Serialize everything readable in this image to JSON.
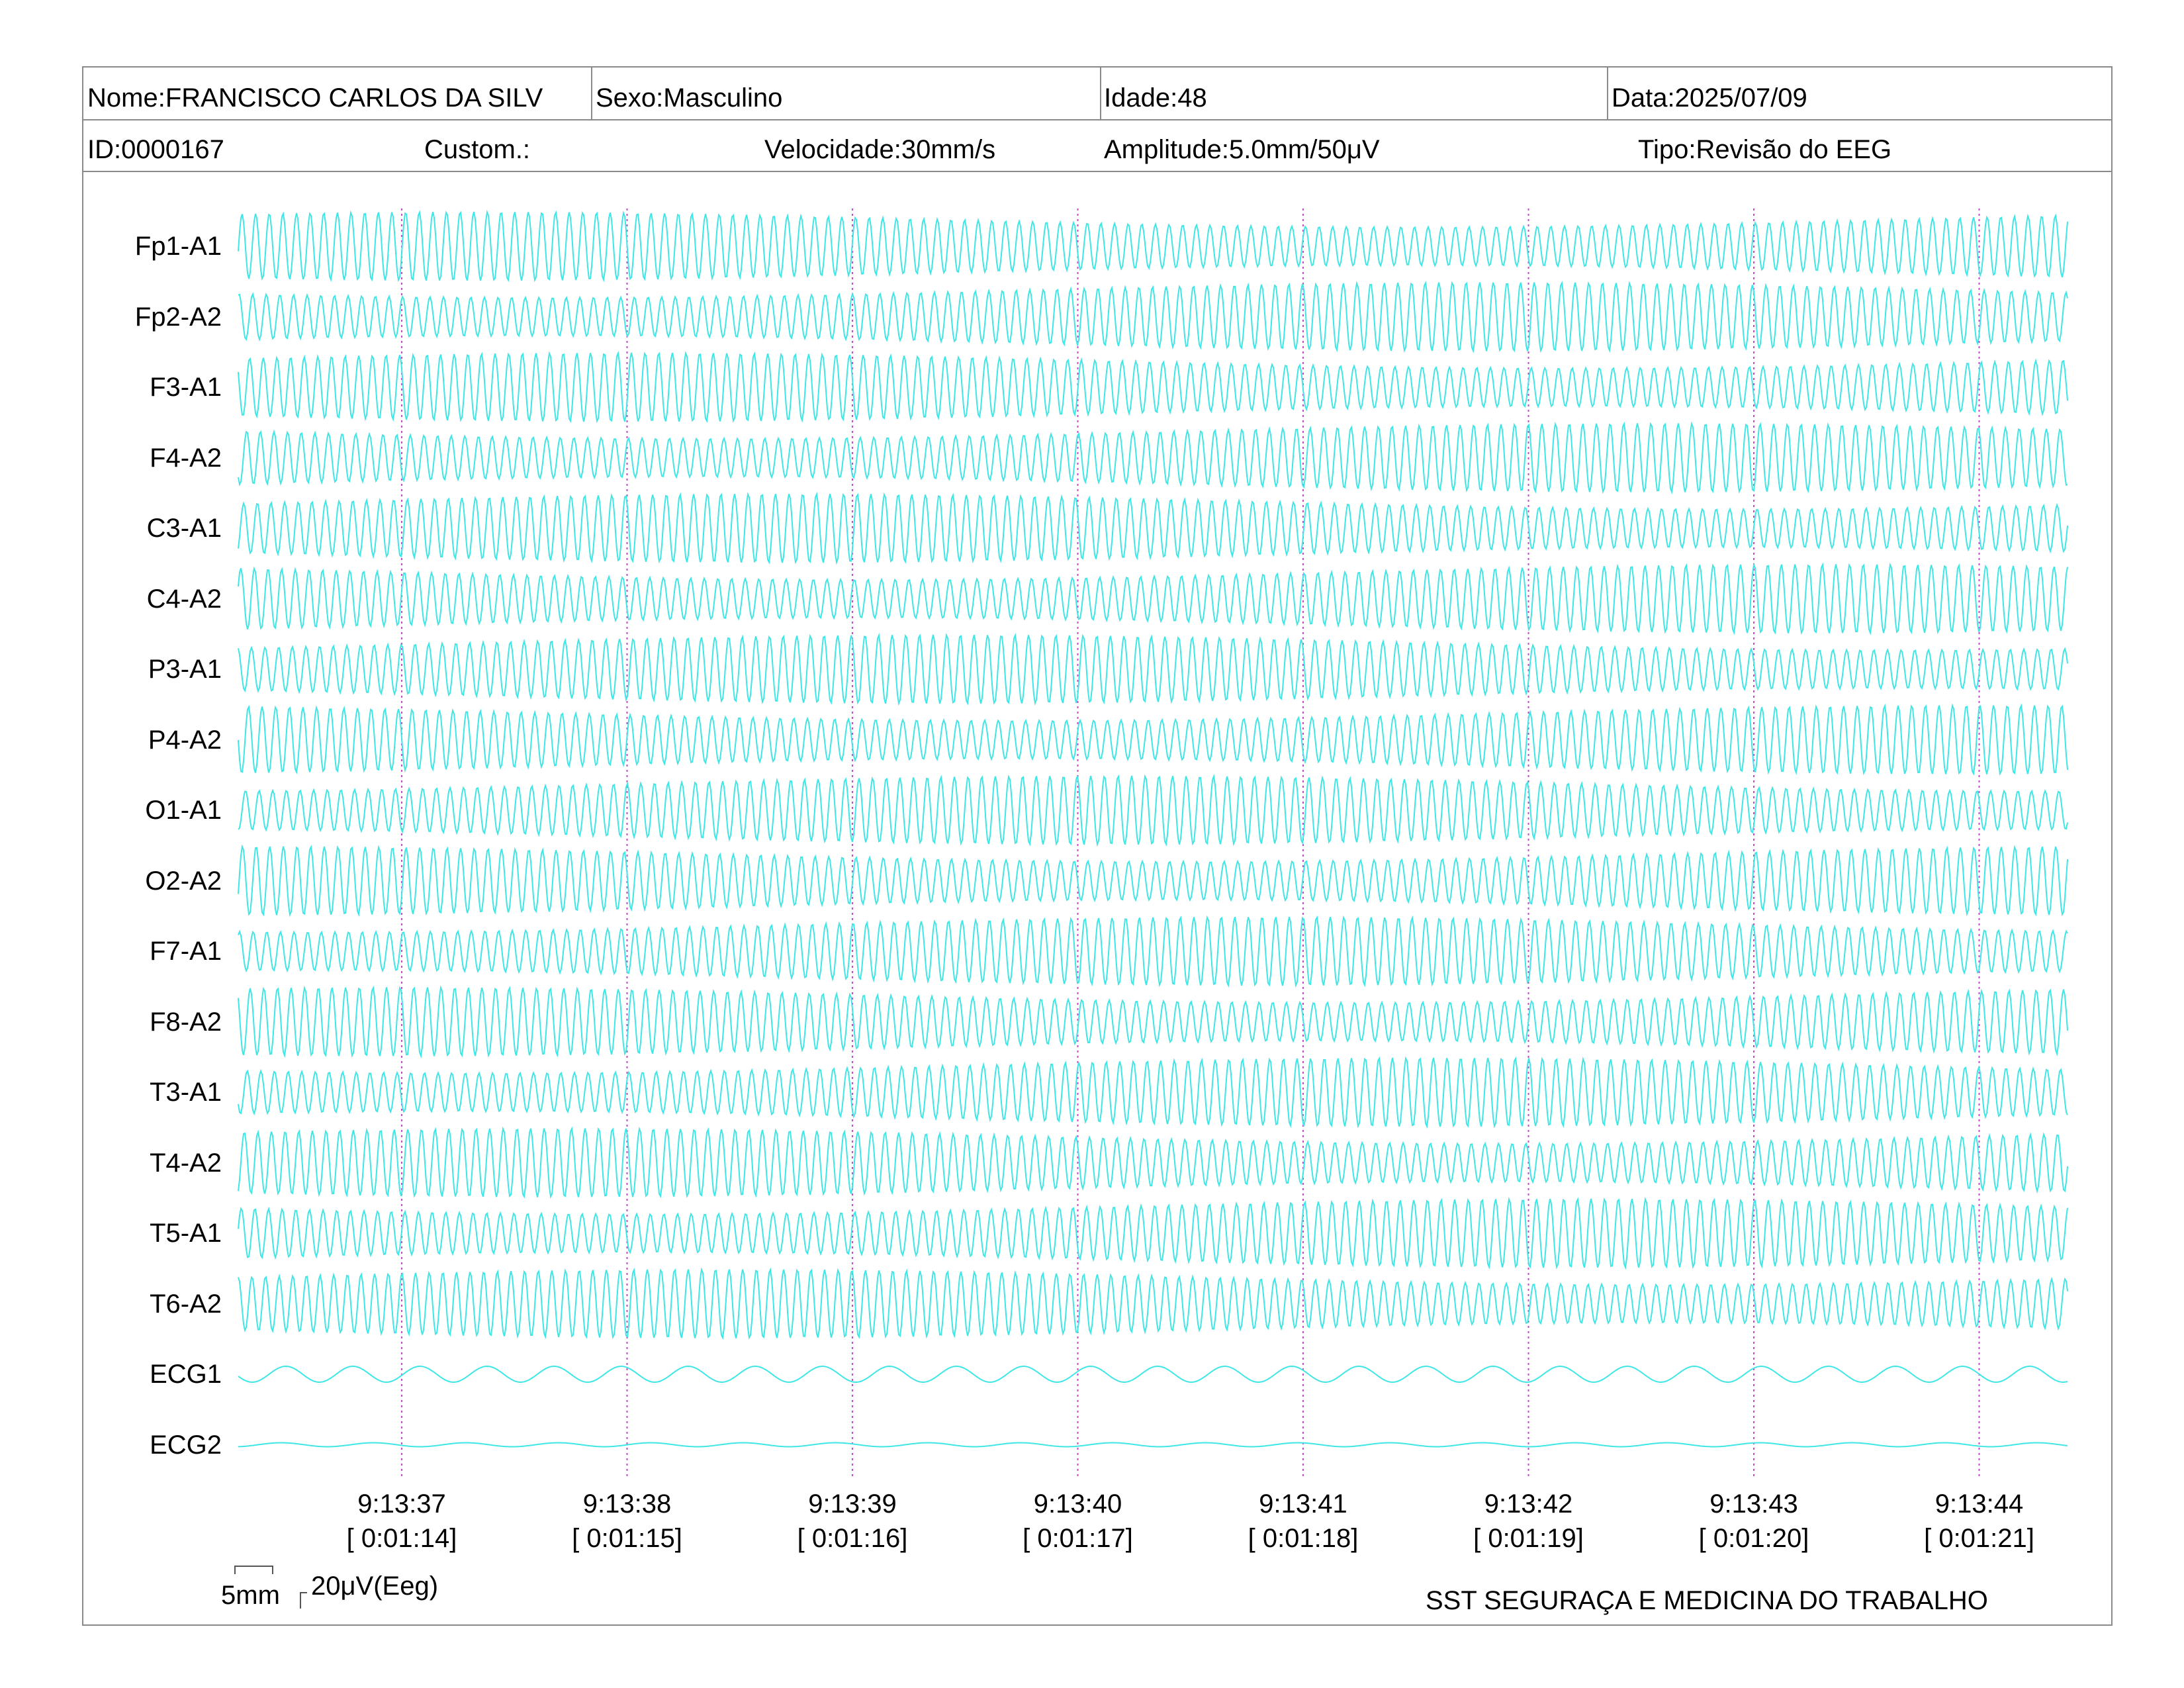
{
  "header": {
    "name": "Nome:FRANCISCO CARLOS DA SILV",
    "sex": "Sexo:Masculino",
    "age": "Idade:48",
    "date": "Data:2025/07/09",
    "id": "ID:0000167",
    "custom": "Custom.:",
    "speed": "Velocidade:30mm/s",
    "amplitude": "Amplitude:5.0mm/50μV",
    "type": "Tipo:Revisão do EEG"
  },
  "channels": [
    "Fp1-A1",
    "Fp2-A2",
    "F3-A1",
    "F4-A2",
    "C3-A1",
    "C4-A2",
    "P3-A1",
    "P4-A2",
    "O1-A1",
    "O2-A2",
    "F7-A1",
    "F8-A2",
    "T3-A1",
    "T4-A2",
    "T5-A1",
    "T6-A2",
    "ECG1",
    "ECG2"
  ],
  "time_markers": [
    {
      "clock": "9:13:37",
      "elapsed": "[ 0:01:14]"
    },
    {
      "clock": "9:13:38",
      "elapsed": "[ 0:01:15]"
    },
    {
      "clock": "9:13:39",
      "elapsed": "[ 0:01:16]"
    },
    {
      "clock": "9:13:40",
      "elapsed": "[ 0:01:17]"
    },
    {
      "clock": "9:13:41",
      "elapsed": "[ 0:01:18]"
    },
    {
      "clock": "9:13:42",
      "elapsed": "[ 0:01:19]"
    },
    {
      "clock": "9:13:43",
      "elapsed": "[ 0:01:20]"
    },
    {
      "clock": "9:13:44",
      "elapsed": "[ 0:01:21]"
    }
  ],
  "scale": {
    "time_label": "5mm",
    "amp_label": "20μV(Eeg)"
  },
  "footer": {
    "company": "SST SEGURAÇA E MEDICINA DO TRABALHO"
  },
  "colors": {
    "trace": "#3fe6e6",
    "marker": "#cc44cc",
    "border": "#8a8a8a"
  }
}
